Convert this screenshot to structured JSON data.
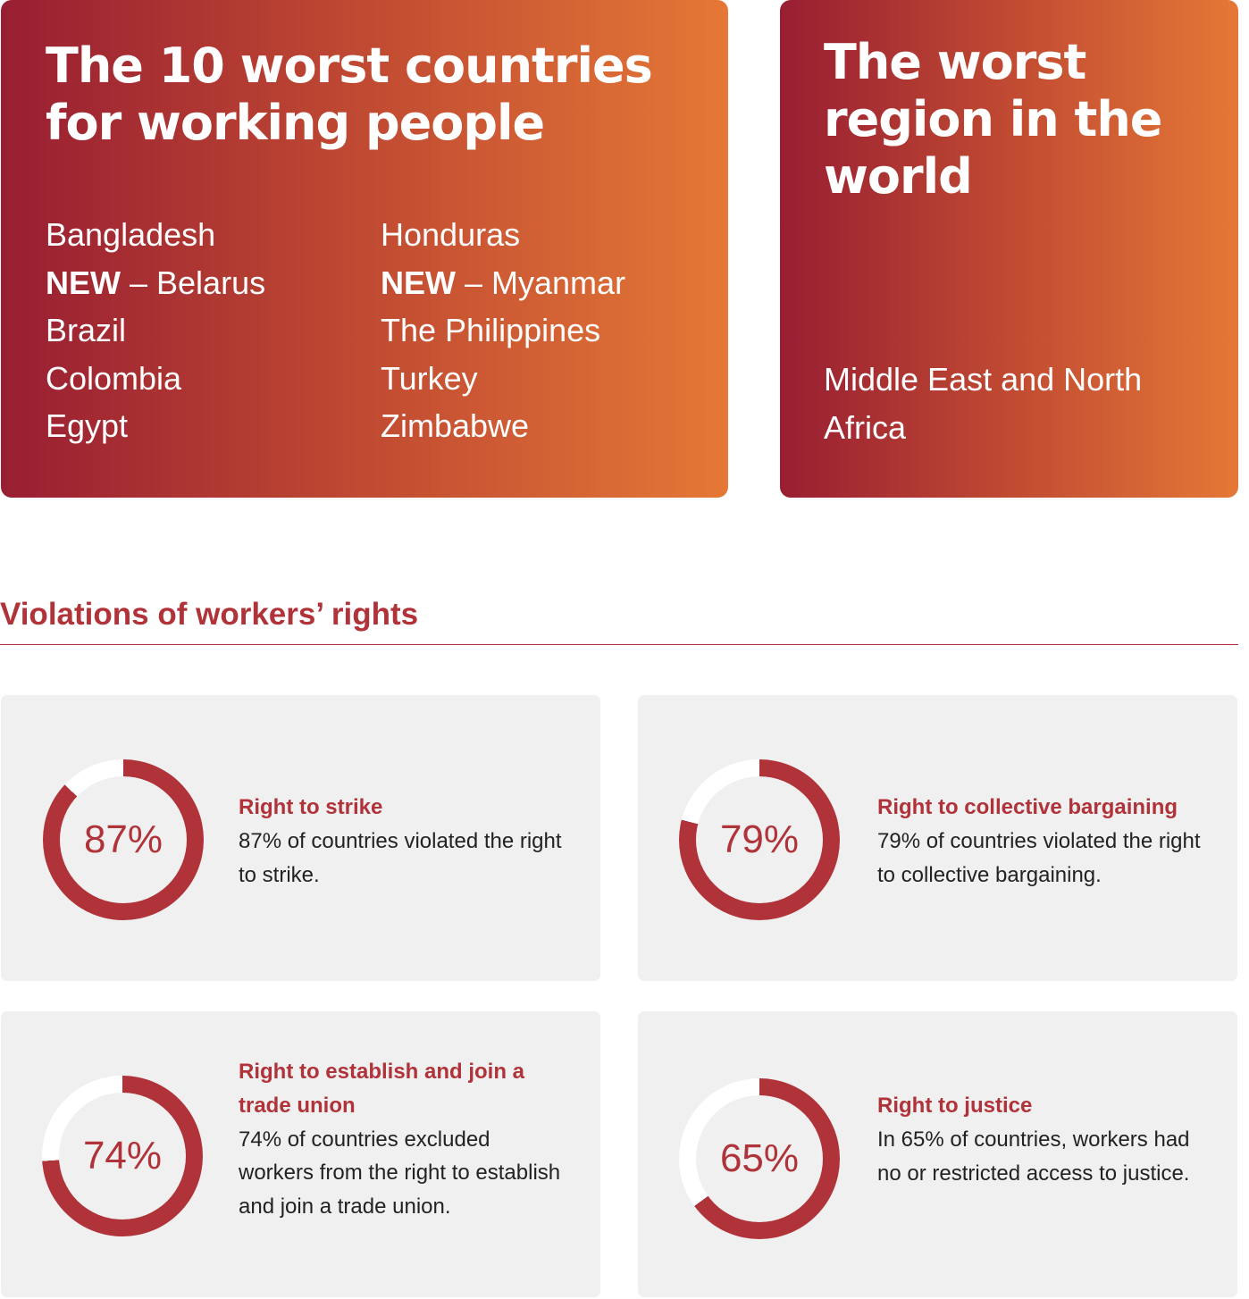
{
  "worst_countries": {
    "title": "The 10 worst countries for working people",
    "column_a": [
      {
        "new": "",
        "name": "Bangladesh"
      },
      {
        "new": "NEW",
        "name": " – Belarus"
      },
      {
        "new": "",
        "name": "Brazil"
      },
      {
        "new": "",
        "name": "Colombia"
      },
      {
        "new": "",
        "name": "Egypt"
      }
    ],
    "column_b": [
      {
        "new": "",
        "name": "Honduras"
      },
      {
        "new": "NEW",
        "name": " – Myanmar"
      },
      {
        "new": "",
        "name": "The Philippines"
      },
      {
        "new": "",
        "name": "Turkey"
      },
      {
        "new": "",
        "name": "Zimbabwe"
      }
    ]
  },
  "worst_region": {
    "title": "The worst region in the world",
    "region": "Middle East and North Africa"
  },
  "violations": {
    "heading": "Violations of workers’ rights",
    "cards": [
      {
        "percent": 87,
        "label": "87%",
        "title": "Right to strike",
        "description": "87% of countries violated the right to strike."
      },
      {
        "percent": 79,
        "label": "79%",
        "title": "Right to collective bargaining",
        "description": "79% of countries violated the right to collective bargaining."
      },
      {
        "percent": 74,
        "label": "74%",
        "title": "Right to establish and join a trade union",
        "description": "74% of countries excluded workers from the right to establish and join a trade union."
      },
      {
        "percent": 65,
        "label": "65%",
        "title": "Right to justice",
        "description": "In 65% of countries, workers had no or restricted access to justice."
      }
    ]
  },
  "colors": {
    "gradient_start": "#981e32",
    "gradient_end": "#e57836",
    "accent_red": "#b0333a",
    "card_background": "#f0f0f0",
    "ring_track": "#ffffff"
  }
}
